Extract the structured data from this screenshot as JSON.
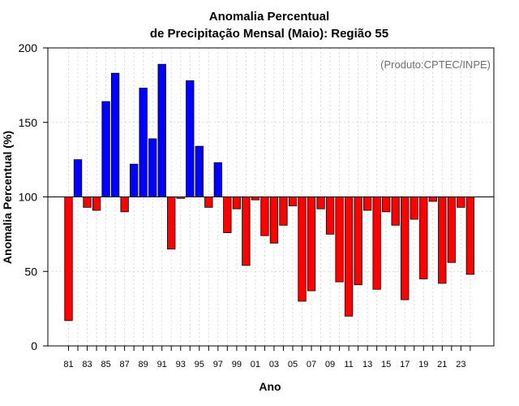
{
  "chart_data": {
    "type": "bar",
    "title_line1": "Anomalia Percentual",
    "title_line2": "de Precipitação Mensal (Maio): Região 55",
    "xlabel": "Ano",
    "ylabel": "Anomalia Percentual (%)",
    "credit": "(Produto:CPTEC/INPE)",
    "ylim": [
      0,
      200
    ],
    "yticks": [
      0,
      50,
      100,
      150,
      200
    ],
    "baseline": 100,
    "years": [
      "81",
      "82",
      "83",
      "84",
      "85",
      "86",
      "87",
      "88",
      "89",
      "90",
      "91",
      "92",
      "93",
      "94",
      "95",
      "96",
      "97",
      "98",
      "99",
      "00",
      "01",
      "02",
      "03",
      "04",
      "05",
      "06",
      "07",
      "08",
      "09",
      "10",
      "11",
      "12",
      "13",
      "14",
      "15",
      "16",
      "17",
      "18",
      "19",
      "20",
      "21",
      "22",
      "23",
      "24"
    ],
    "x_tick_labels": [
      "81",
      "83",
      "85",
      "87",
      "89",
      "91",
      "93",
      "95",
      "97",
      "99",
      "01",
      "03",
      "05",
      "07",
      "09",
      "11",
      "13",
      "15",
      "17",
      "19",
      "21",
      "23"
    ],
    "values": [
      17,
      125,
      93,
      91,
      164,
      183,
      90,
      122,
      173,
      139,
      189,
      65,
      99,
      178,
      134,
      93,
      123,
      76,
      92,
      54,
      98,
      74,
      69,
      81,
      94,
      30,
      37,
      92,
      75,
      43,
      20,
      41,
      91,
      38,
      90,
      81,
      31,
      85,
      45,
      97,
      42,
      56,
      93,
      48
    ],
    "colors": {
      "above": "#0000ff",
      "below": "#ff0000",
      "baseline": "#000000",
      "bar_stroke": "#000000"
    }
  }
}
